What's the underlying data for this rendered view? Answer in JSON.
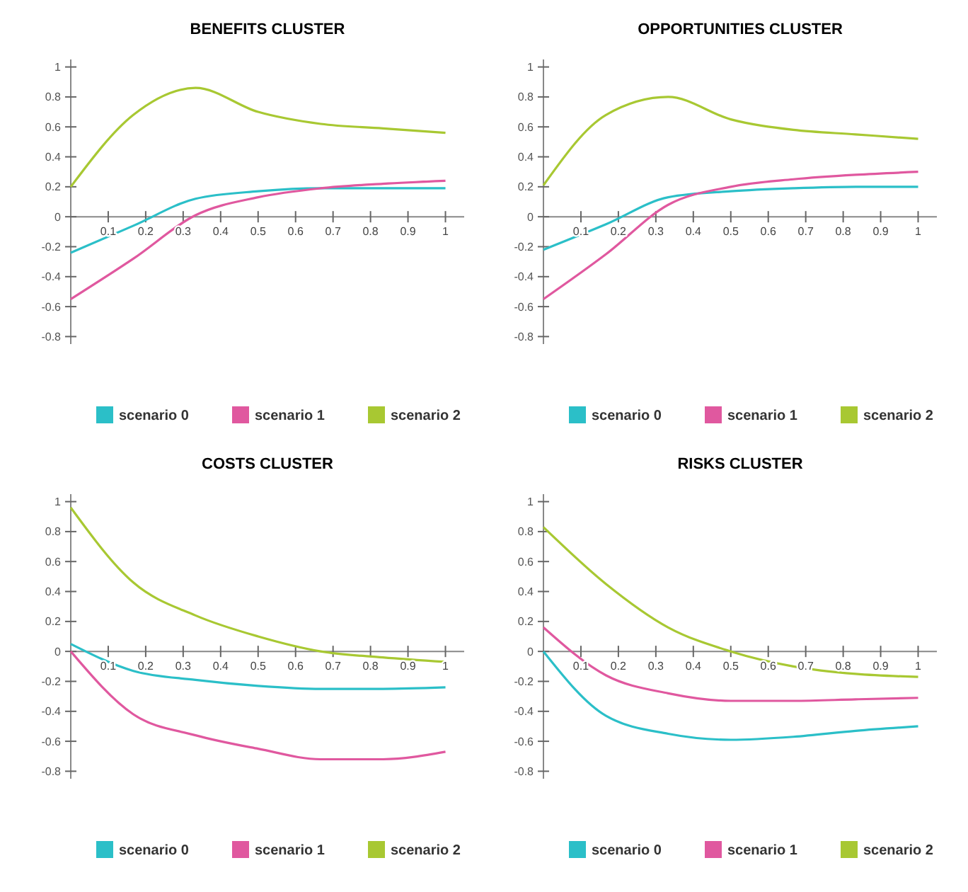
{
  "chart_data": [
    {
      "type": "line",
      "title": "BENEFITS CLUSTER",
      "x": [
        0,
        0.167,
        0.333,
        0.5,
        0.667,
        0.833,
        1
      ],
      "xlim": [
        0,
        1.05
      ],
      "xticks": [
        0.1,
        0.2,
        0.3,
        0.4,
        0.5,
        0.6,
        0.7,
        0.8,
        0.9,
        1
      ],
      "ylim": [
        -0.85,
        1.05
      ],
      "yticks": [
        -0.8,
        -0.6,
        -0.4,
        -0.2,
        0,
        0.2,
        0.4,
        0.6,
        0.8,
        1
      ],
      "grid": false,
      "legend": "bottom",
      "series": [
        {
          "name": "scenario 0",
          "color": "#2bbfc8",
          "values": [
            -0.24,
            -0.06,
            0.12,
            0.17,
            0.19,
            0.19,
            0.19
          ]
        },
        {
          "name": "scenario 1",
          "color": "#e0589f",
          "values": [
            -0.55,
            -0.28,
            0.01,
            0.13,
            0.19,
            0.22,
            0.24
          ]
        },
        {
          "name": "scenario 2",
          "color": "#a8c832",
          "values": [
            0.2,
            0.68,
            0.86,
            0.7,
            0.62,
            0.59,
            0.56
          ]
        }
      ]
    },
    {
      "type": "line",
      "title": "OPPORTUNITIES CLUSTER",
      "x": [
        0,
        0.167,
        0.333,
        0.5,
        0.667,
        0.833,
        1
      ],
      "xlim": [
        0,
        1.05
      ],
      "xticks": [
        0.1,
        0.2,
        0.3,
        0.4,
        0.5,
        0.6,
        0.7,
        0.8,
        0.9,
        1
      ],
      "ylim": [
        -0.85,
        1.05
      ],
      "yticks": [
        -0.8,
        -0.6,
        -0.4,
        -0.2,
        0,
        0.2,
        0.4,
        0.6,
        0.8,
        1
      ],
      "grid": false,
      "legend": "bottom",
      "series": [
        {
          "name": "scenario 0",
          "color": "#2bbfc8",
          "values": [
            -0.22,
            -0.05,
            0.13,
            0.17,
            0.19,
            0.2,
            0.2
          ]
        },
        {
          "name": "scenario 1",
          "color": "#e0589f",
          "values": [
            -0.55,
            -0.25,
            0.08,
            0.2,
            0.25,
            0.28,
            0.3
          ]
        },
        {
          "name": "scenario 2",
          "color": "#a8c832",
          "values": [
            0.21,
            0.68,
            0.8,
            0.65,
            0.58,
            0.55,
            0.52
          ]
        }
      ]
    },
    {
      "type": "line",
      "title": "COSTS CLUSTER",
      "x": [
        0,
        0.167,
        0.333,
        0.5,
        0.667,
        0.833,
        1
      ],
      "xlim": [
        0,
        1.05
      ],
      "xticks": [
        0.1,
        0.2,
        0.3,
        0.4,
        0.5,
        0.6,
        0.7,
        0.8,
        0.9,
        1
      ],
      "ylim": [
        -0.85,
        1.05
      ],
      "yticks": [
        -0.8,
        -0.6,
        -0.4,
        -0.2,
        0,
        0.2,
        0.4,
        0.6,
        0.8,
        1
      ],
      "grid": false,
      "legend": "bottom",
      "series": [
        {
          "name": "scenario 0",
          "color": "#2bbfc8",
          "values": [
            0.05,
            -0.13,
            -0.19,
            -0.23,
            -0.25,
            -0.25,
            -0.24
          ]
        },
        {
          "name": "scenario 1",
          "color": "#e0589f",
          "values": [
            0,
            -0.42,
            -0.56,
            -0.65,
            -0.72,
            -0.72,
            -0.67
          ]
        },
        {
          "name": "scenario 2",
          "color": "#a8c832",
          "values": [
            0.96,
            0.46,
            0.24,
            0.1,
            0,
            -0.04,
            -0.07
          ]
        }
      ]
    },
    {
      "type": "line",
      "title": "RISKS CLUSTER",
      "x": [
        0,
        0.167,
        0.333,
        0.5,
        0.667,
        0.833,
        1
      ],
      "xlim": [
        0,
        1.05
      ],
      "xticks": [
        0.1,
        0.2,
        0.3,
        0.4,
        0.5,
        0.6,
        0.7,
        0.8,
        0.9,
        1
      ],
      "ylim": [
        -0.85,
        1.05
      ],
      "yticks": [
        -0.8,
        -0.6,
        -0.4,
        -0.2,
        0,
        0.2,
        0.4,
        0.6,
        0.8,
        1
      ],
      "grid": false,
      "legend": "bottom",
      "series": [
        {
          "name": "scenario 0",
          "color": "#2bbfc8",
          "values": [
            0,
            -0.43,
            -0.55,
            -0.59,
            -0.57,
            -0.53,
            -0.5
          ]
        },
        {
          "name": "scenario 1",
          "color": "#e0589f",
          "values": [
            0.16,
            -0.16,
            -0.28,
            -0.33,
            -0.33,
            -0.32,
            -0.31
          ]
        },
        {
          "name": "scenario 2",
          "color": "#a8c832",
          "values": [
            0.83,
            0.45,
            0.16,
            0,
            -0.1,
            -0.15,
            -0.17
          ]
        }
      ]
    }
  ]
}
